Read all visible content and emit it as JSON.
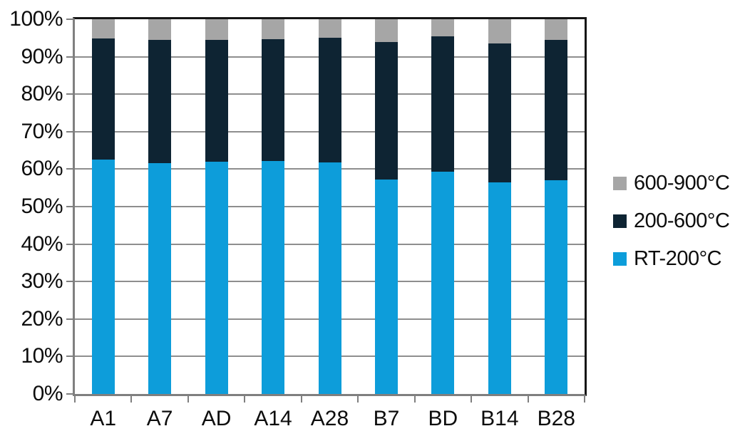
{
  "chart_data": {
    "type": "bar",
    "subtype": "stacked-100-percent",
    "title": "",
    "xlabel": "",
    "ylabel": "",
    "categories": [
      "A1",
      "A7",
      "AD",
      "A14",
      "A28",
      "B7",
      "BD",
      "B14",
      "B28"
    ],
    "series": [
      {
        "name": "RT-200°C",
        "color": "#0d9dda",
        "values": [
          62.5,
          61.6,
          61.9,
          62.1,
          61.7,
          57.3,
          59.3,
          56.4,
          57.1
        ]
      },
      {
        "name": "200-600°C",
        "color": "#0e2433",
        "values": [
          32.3,
          32.8,
          32.5,
          32.5,
          33.4,
          36.6,
          36.1,
          37.2,
          37.3
        ]
      },
      {
        "name": "600-900°C",
        "color": "#a6a6a6",
        "values": [
          5.2,
          5.6,
          5.6,
          5.4,
          4.9,
          6.1,
          4.6,
          6.4,
          5.6
        ]
      }
    ],
    "legend": {
      "position": "right",
      "order_top_to_bottom": [
        "600-900°C",
        "200-600°C",
        "RT-200°C"
      ]
    },
    "y_axis": {
      "min": 0,
      "max": 100,
      "tick_step": 10,
      "tick_labels": [
        "0%",
        "10%",
        "20%",
        "30%",
        "40%",
        "50%",
        "60%",
        "70%",
        "80%",
        "90%",
        "100%"
      ]
    },
    "grid": true,
    "colors": {
      "gridline": "#8e8e8e",
      "axis": "#7f7f7f",
      "frame": "#161616",
      "text": "#0d0d0d",
      "background": "#ffffff"
    }
  }
}
